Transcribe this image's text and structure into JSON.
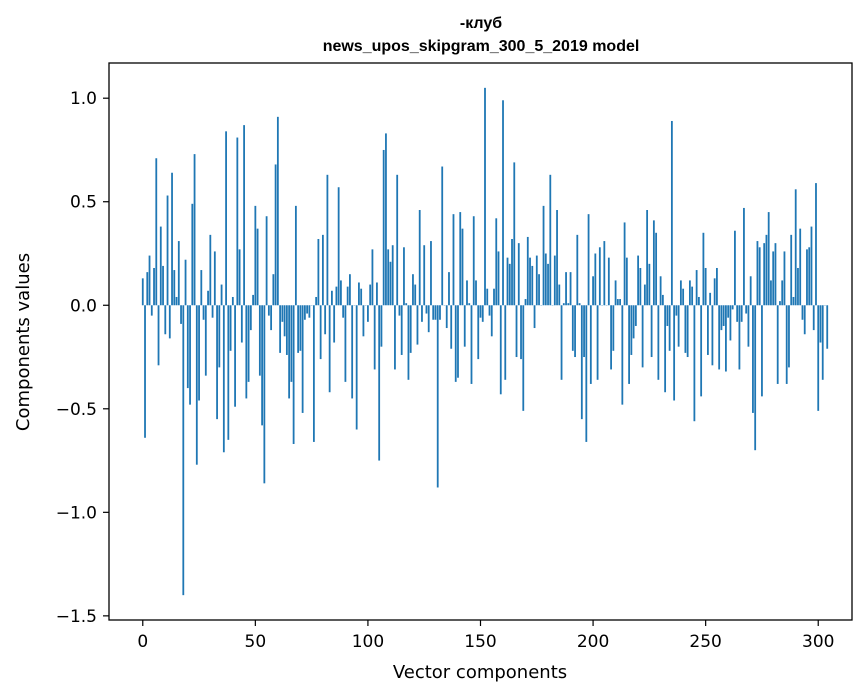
{
  "chart_data": {
    "type": "bar",
    "title_line1": "-клуб",
    "title_line2": "news_upos_skipgram_300_5_2019 model",
    "xlabel": "Vector components",
    "ylabel": "Components values",
    "xlim": [
      -15,
      315
    ],
    "ylim": [
      -1.52,
      1.17
    ],
    "xticks": [
      0,
      50,
      100,
      150,
      200,
      250,
      300
    ],
    "xtick_labels": [
      "0",
      "50",
      "100",
      "150",
      "200",
      "250",
      "300"
    ],
    "yticks": [
      -1.5,
      -1.0,
      -0.5,
      0.0,
      0.5,
      1.0
    ],
    "ytick_labels": [
      "−1.5",
      "−1.0",
      "−0.5",
      "0.0",
      "0.5",
      "1.0"
    ],
    "bar_color": "#1f77b4",
    "grid": false,
    "legend": "none",
    "values": [
      0.13,
      -0.64,
      0.16,
      0.24,
      -0.05,
      0.18,
      0.71,
      -0.29,
      0.38,
      0.19,
      -0.14,
      0.53,
      -0.16,
      0.64,
      0.17,
      0.04,
      0.31,
      -0.09,
      -1.4,
      0.22,
      -0.4,
      -0.48,
      0.49,
      0.73,
      -0.77,
      -0.46,
      0.17,
      -0.07,
      -0.34,
      0.07,
      0.34,
      -0.06,
      0.26,
      -0.55,
      -0.3,
      0.1,
      -0.71,
      0.84,
      -0.65,
      -0.22,
      0.04,
      -0.49,
      0.81,
      0.27,
      -0.18,
      0.87,
      -0.45,
      -0.37,
      -0.12,
      0.05,
      0.48,
      0.37,
      -0.34,
      -0.58,
      -0.86,
      0.43,
      -0.05,
      -0.12,
      0.15,
      0.68,
      0.91,
      -0.23,
      -0.08,
      -0.15,
      -0.24,
      -0.45,
      -0.37,
      -0.67,
      0.48,
      -0.23,
      -0.22,
      -0.52,
      -0.07,
      -0.04,
      -0.06,
      0.0,
      -0.66,
      0.04,
      0.32,
      -0.26,
      0.34,
      -0.14,
      0.63,
      -0.42,
      0.07,
      -0.18,
      0.09,
      0.57,
      0.12,
      -0.06,
      -0.37,
      0.09,
      0.15,
      -0.45,
      0.0,
      -0.6,
      0.11,
      0.08,
      -0.15,
      0.0,
      -0.08,
      0.1,
      0.27,
      -0.31,
      0.11,
      -0.75,
      -0.2,
      0.75,
      0.83,
      0.27,
      0.21,
      0.29,
      -0.31,
      0.63,
      -0.05,
      -0.24,
      0.28,
      0.01,
      -0.36,
      -0.23,
      0.15,
      0.1,
      -0.19,
      0.46,
      -0.08,
      0.29,
      -0.04,
      -0.13,
      0.31,
      -0.07,
      -0.07,
      -0.88,
      -0.07,
      0.67,
      0.0,
      -0.11,
      0.16,
      -0.21,
      0.44,
      -0.37,
      -0.35,
      0.45,
      0.37,
      -0.2,
      0.12,
      0.01,
      -0.38,
      0.43,
      0.12,
      -0.26,
      -0.06,
      -0.08,
      1.05,
      0.08,
      -0.05,
      -0.15,
      0.08,
      0.42,
      0.26,
      -0.43,
      0.99,
      -0.36,
      0.23,
      0.2,
      0.32,
      0.69,
      -0.25,
      0.3,
      -0.26,
      -0.51,
      0.03,
      0.33,
      0.23,
      0.19,
      -0.11,
      0.24,
      0.15,
      0.0,
      0.48,
      0.25,
      0.2,
      0.63,
      0.0,
      0.24,
      0.46,
      0.1,
      -0.36,
      0.01,
      0.16,
      0.01,
      0.16,
      -0.22,
      -0.25,
      0.34,
      0.01,
      -0.55,
      -0.25,
      -0.66,
      0.44,
      -0.38,
      0.14,
      0.25,
      -0.36,
      0.28,
      0.0,
      0.31,
      0.0,
      0.23,
      -0.31,
      -0.22,
      0.12,
      0.03,
      0.03,
      -0.48,
      0.4,
      0.23,
      -0.38,
      -0.24,
      -0.16,
      -0.1,
      0.24,
      0.18,
      -0.3,
      0.1,
      0.46,
      0.2,
      -0.25,
      0.41,
      0.35,
      -0.36,
      0.14,
      0.05,
      -0.42,
      -0.1,
      -0.22,
      0.89,
      -0.46,
      -0.05,
      -0.2,
      0.12,
      0.08,
      -0.23,
      -0.25,
      0.12,
      0.09,
      -0.56,
      0.17,
      0.04,
      -0.44,
      0.35,
      0.18,
      -0.24,
      0.06,
      -0.29,
      0.13,
      0.18,
      -0.31,
      -0.12,
      -0.1,
      -0.32,
      -0.06,
      -0.17,
      -0.02,
      0.36,
      -0.08,
      -0.31,
      -0.08,
      0.47,
      -0.04,
      -0.2,
      0.14,
      -0.52,
      -0.7,
      0.31,
      0.28,
      -0.44,
      0.3,
      0.34,
      0.45,
      0.12,
      0.26,
      0.3,
      -0.38,
      0.02,
      0.12,
      0.26,
      -0.38,
      -0.3,
      0.34,
      0.04,
      0.56,
      0.18,
      0.37,
      -0.07,
      -0.14,
      0.27,
      0.28,
      0.38,
      -0.12,
      0.59,
      -0.51,
      -0.18,
      -0.36,
      0.0,
      -0.21
    ]
  }
}
